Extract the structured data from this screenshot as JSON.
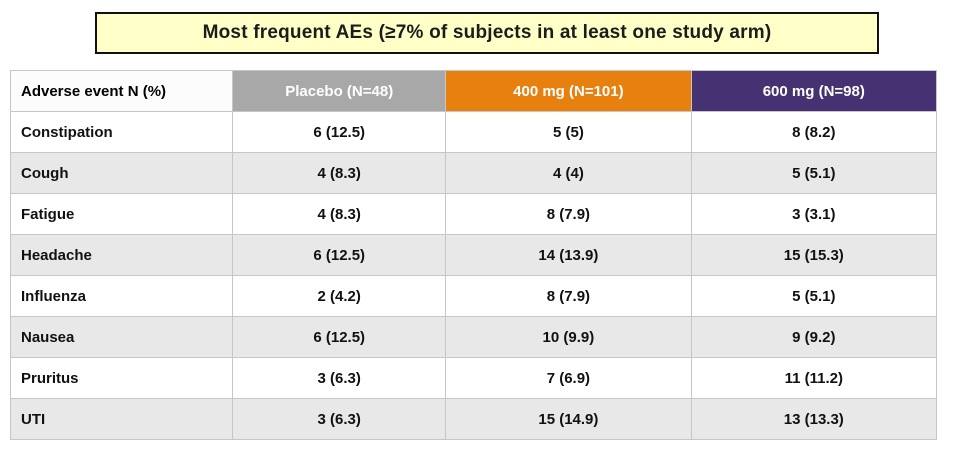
{
  "slide": {
    "title": "Most frequent AEs (≥7% of subjects in at least one study arm)"
  },
  "colors": {
    "banner_bg": "#ffffc8",
    "banner_border": "#111111",
    "header_event_bg": "#fcfcfc",
    "header_placebo_bg": "#a8a8a8",
    "header_400mg_bg": "#e8800f",
    "header_600mg_bg": "#463272",
    "row_alt_bg": "#e8e8e8",
    "grid_line": "#c6c6c6"
  },
  "chart_data": {
    "type": "table",
    "title": "Most frequent AEs (≥7% of subjects in at least one study arm)",
    "columns": [
      "Adverse event N (%)",
      "Placebo (N=48)",
      "400 mg (N=101)",
      "600 mg (N=98)"
    ],
    "rows": [
      [
        "Constipation",
        "6 (12.5)",
        "5 (5)",
        "8 (8.2)"
      ],
      [
        "Cough",
        "4 (8.3)",
        "4 (4)",
        "5 (5.1)"
      ],
      [
        "Fatigue",
        "4 (8.3)",
        "8 (7.9)",
        "3 (3.1)"
      ],
      [
        "Headache",
        "6 (12.5)",
        "14 (13.9)",
        "15 (15.3)"
      ],
      [
        "Influenza",
        "2 (4.2)",
        "8 (7.9)",
        "5 (5.1)"
      ],
      [
        "Nausea",
        "6 (12.5)",
        "10 (9.9)",
        "9 (9.2)"
      ],
      [
        "Pruritus",
        "3 (6.3)",
        "7 (6.9)",
        "11 (11.2)"
      ],
      [
        "UTI",
        "3 (6.3)",
        "15 (14.9)",
        "13 (13.3)"
      ]
    ]
  }
}
